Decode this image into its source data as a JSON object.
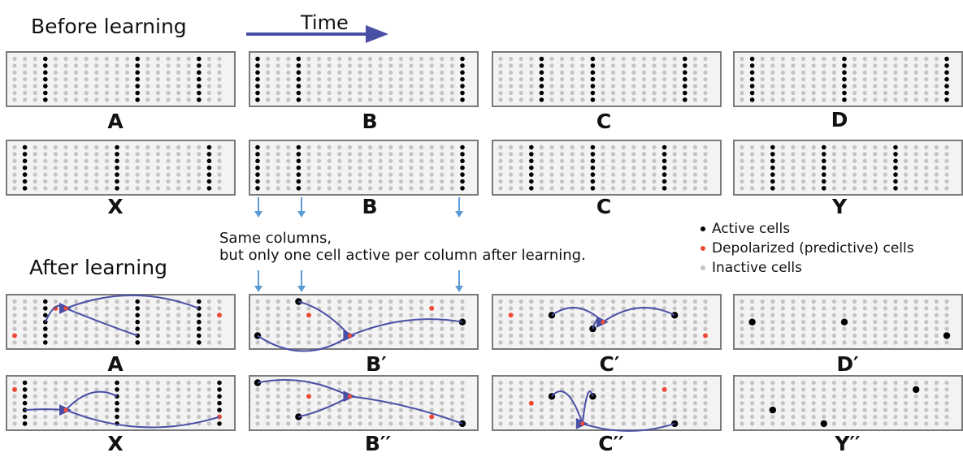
{
  "titles": {
    "before": "Before learning",
    "after": "After learning",
    "time": "Time"
  },
  "labels": {
    "row1": [
      "A",
      "B",
      "C",
      "D"
    ],
    "row2": [
      "X",
      "B",
      "C",
      "Y"
    ],
    "row3": [
      "A",
      "B′",
      "C′",
      "D′"
    ],
    "row4": [
      "X",
      "B′′",
      "C′′",
      "Y′′"
    ]
  },
  "note": {
    "line1": "Same columns,",
    "line2": "but only one cell active per column after learning."
  },
  "legend": {
    "active": "Active cells",
    "depolarized": "Depolarized (predictive) cells",
    "inactive": "Inactive cells"
  },
  "colors": {
    "active": "#000000",
    "depolarized": "#ef4a36",
    "inactive": "#c4c4c4",
    "dendrite": "#4a4fa6",
    "arrow": "#5b9bd5",
    "panel_border": "#7a7a7a",
    "panel_fill": "#f3f3f3"
  }
}
